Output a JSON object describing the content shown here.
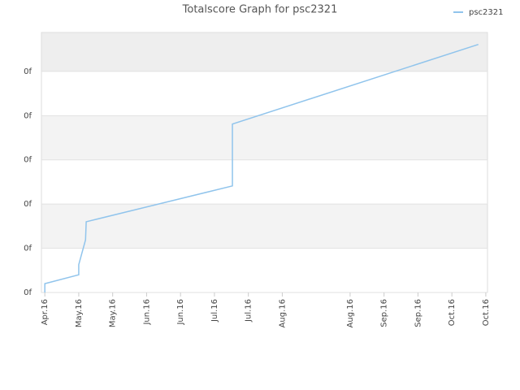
{
  "chart_data": {
    "type": "line",
    "title": "Totalscore Graph for psc2321",
    "x": [
      0,
      0,
      1.0,
      1.0,
      1.2,
      1.22,
      5.53,
      5.53,
      12.78
    ],
    "series": [
      {
        "name": "psc2321",
        "color": "#90c4ec",
        "values": [
          0,
          0.2,
          0.4,
          0.63,
          1.19,
          1.6,
          2.41,
          3.81,
          5.61
        ]
      }
    ],
    "xlim": [
      -0.1,
      13.05
    ],
    "xticks": [
      {
        "value": 0,
        "label": "Apr.16"
      },
      {
        "value": 1,
        "label": "May.16"
      },
      {
        "value": 2,
        "label": "May.16"
      },
      {
        "value": 3,
        "label": "Jun.16"
      },
      {
        "value": 4,
        "label": "Jun.16"
      },
      {
        "value": 5,
        "label": "Jul.16"
      },
      {
        "value": 6,
        "label": "Jul.16"
      },
      {
        "value": 7,
        "label": "Aug.16"
      },
      {
        "value": 9,
        "label": "Aug.16"
      },
      {
        "value": 10,
        "label": "Sep.16"
      },
      {
        "value": 11,
        "label": "Sep.16"
      },
      {
        "value": 12,
        "label": "Oct.16"
      },
      {
        "value": 13,
        "label": "Oct.16"
      }
    ],
    "ylim": [
      0,
      5.88
    ],
    "yticks": [
      {
        "value": 0,
        "label": "0f"
      },
      {
        "value": 1,
        "label": "0f"
      },
      {
        "value": 2,
        "label": "0f"
      },
      {
        "value": 3,
        "label": "0f"
      },
      {
        "value": 4,
        "label": "0f"
      },
      {
        "value": 5,
        "label": "0f"
      }
    ],
    "grid": true,
    "legend": "top-right"
  }
}
